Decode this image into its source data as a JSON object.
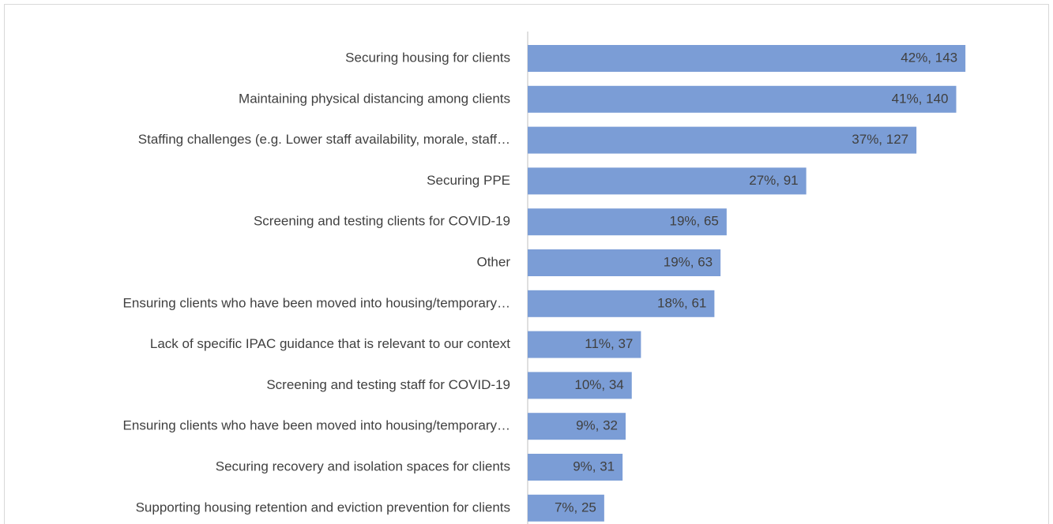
{
  "chart_data": {
    "type": "bar",
    "orientation": "horizontal",
    "categories": [
      "Securing housing for clients",
      "Maintaining physical distancing among clients",
      "Staffing challenges (e.g. Lower staff availability, morale, staff…",
      "Securing PPE",
      "Screening and testing clients for COVID-19",
      "Other",
      "Ensuring clients who have been moved into housing/temporary…",
      "Lack of specific IPAC guidance that is relevant to our context",
      "Screening and testing staff for COVID-19",
      "Ensuring clients who have been moved into housing/temporary…",
      "Securing recovery and isolation spaces for clients",
      "Supporting housing retention and eviction prevention for clients"
    ],
    "values": [
      143,
      140,
      127,
      91,
      65,
      63,
      61,
      37,
      34,
      32,
      31,
      25
    ],
    "value_labels": [
      "42%, 143",
      "41%, 140",
      "37%, 127",
      "27%, 91",
      "19%, 65",
      "19%, 63",
      "18%, 61",
      "11%, 37",
      "10%, 34",
      "9%, 32",
      "9%, 31",
      "7%, 25"
    ],
    "color": "#7b9dd6"
  }
}
